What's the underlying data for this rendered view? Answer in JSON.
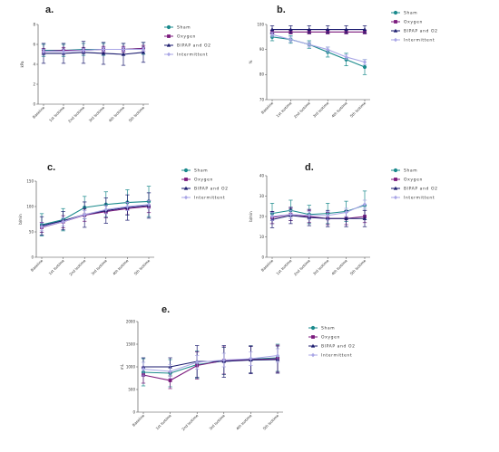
{
  "chart_data": [
    {
      "type": "line",
      "title": "a.",
      "ylabel": "kPa",
      "categories": [
        "Baseline",
        "1st Isotime",
        "2nd Isotime",
        "3rd Isotime",
        "4th Isotime",
        "5th Isotime"
      ],
      "ylim": [
        0,
        8
      ],
      "yticks": [
        0,
        2,
        4,
        6,
        8
      ],
      "colors": [
        "#1a8a8c",
        "#7b1a7d",
        "#1a1a6e",
        "#a9a6e6"
      ],
      "series": [
        {
          "name": "Sham",
          "values": [
            5.4,
            5.4,
            5.5,
            5.5,
            5.5,
            5.6
          ],
          "errors": [
            0.6,
            0.6,
            0.6,
            0.6,
            0.6,
            0.6
          ]
        },
        {
          "name": "Oxygen",
          "values": [
            5.3,
            5.4,
            5.4,
            5.5,
            5.5,
            5.6
          ],
          "errors": [
            0.3,
            0.3,
            0.3,
            0.3,
            0.3,
            0.3
          ]
        },
        {
          "name": "BIPAP and O2",
          "values": [
            5.1,
            5.1,
            5.2,
            5.1,
            5.0,
            5.2
          ],
          "errors": [
            1.0,
            1.0,
            1.1,
            1.1,
            1.1,
            1.0
          ]
        },
        {
          "name": "Intermittent",
          "values": [
            5.3,
            5.3,
            5.4,
            5.5,
            5.5,
            5.5
          ],
          "errors": [
            0.2,
            0.2,
            0.2,
            0.2,
            0.2,
            0.2
          ]
        }
      ]
    },
    {
      "type": "line",
      "title": "b.",
      "ylabel": "%",
      "categories": [
        "Baseline",
        "1st Isotime",
        "2nd Isotime",
        "3rd Isotime",
        "4th Isotime",
        "5th Isotime"
      ],
      "ylim": [
        70,
        100
      ],
      "yticks": [
        70,
        80,
        90,
        100
      ],
      "colors": [
        "#1a8a8c",
        "#7b1a7d",
        "#1a1a6e",
        "#a9a6e6"
      ],
      "series": [
        {
          "name": "Sham",
          "values": [
            95,
            94,
            92,
            89,
            86,
            83
          ],
          "errors": [
            1.5,
            1.5,
            1.5,
            2,
            2.5,
            3
          ]
        },
        {
          "name": "Oxygen",
          "values": [
            97,
            97,
            97,
            97,
            97,
            97
          ],
          "errors": [
            0.8,
            0.8,
            0.8,
            0.8,
            0.8,
            0.8
          ]
        },
        {
          "name": "BIPAP and O2",
          "values": [
            98,
            98,
            98,
            98,
            98,
            98
          ],
          "errors": [
            1.5,
            1.5,
            1.5,
            1.5,
            1.5,
            1.5
          ]
        },
        {
          "name": "Intermittent",
          "values": [
            96,
            94,
            92,
            90,
            87,
            85
          ],
          "errors": [
            1,
            1,
            1,
            1,
            1,
            1
          ]
        }
      ]
    },
    {
      "type": "line",
      "title": "c.",
      "ylabel": "b/min",
      "categories": [
        "Baseline",
        "1st Isotime",
        "2nd Isotime",
        "3rd Isotime",
        "4th Isotime",
        "5th Isotime"
      ],
      "ylim": [
        0,
        150
      ],
      "yticks": [
        0,
        50,
        100,
        150
      ],
      "colors": [
        "#1a8a8c",
        "#7b1a7d",
        "#1a1a6e",
        "#a9a6e6"
      ],
      "series": [
        {
          "name": "Sham",
          "values": [
            64,
            74,
            98,
            104,
            108,
            110
          ],
          "errors": [
            22,
            22,
            22,
            25,
            25,
            30
          ]
        },
        {
          "name": "Oxygen",
          "values": [
            59,
            70,
            83,
            90,
            96,
            100
          ],
          "errors": [
            10,
            12,
            12,
            12,
            12,
            12
          ]
        },
        {
          "name": "BIPAP and O2",
          "values": [
            62,
            72,
            84,
            92,
            98,
            102
          ],
          "errors": [
            18,
            18,
            25,
            25,
            25,
            25
          ]
        },
        {
          "name": "Intermittent",
          "values": [
            60,
            70,
            84,
            94,
            100,
            104
          ],
          "errors": [
            8,
            8,
            8,
            8,
            8,
            8
          ]
        }
      ]
    },
    {
      "type": "line",
      "title": "d.",
      "ylabel": "b/min",
      "categories": [
        "Baseline",
        "1st Isotime",
        "2nd Isotime",
        "3rd Isotime",
        "4th Isotime",
        "5th Isotime"
      ],
      "ylim": [
        0,
        40
      ],
      "yticks": [
        0,
        10,
        20,
        30,
        40
      ],
      "colors": [
        "#1a8a8c",
        "#7b1a7d",
        "#1a1a6e",
        "#a9a6e6"
      ],
      "series": [
        {
          "name": "Sham",
          "values": [
            21.5,
            23,
            21,
            21.5,
            22.5,
            25.5
          ],
          "errors": [
            5,
            5,
            4.5,
            5,
            5,
            7
          ]
        },
        {
          "name": "Oxygen",
          "values": [
            19.5,
            21,
            20,
            19,
            19,
            20
          ],
          "errors": [
            3,
            3,
            3,
            3,
            3,
            3
          ]
        },
        {
          "name": "BIPAP and O2",
          "values": [
            18.5,
            20.5,
            19.5,
            19,
            19,
            19
          ],
          "errors": [
            4,
            4,
            4,
            4,
            4,
            4
          ]
        },
        {
          "name": "Intermittent",
          "values": [
            20,
            21,
            20.5,
            20.5,
            22,
            26
          ],
          "errors": [
            2,
            2,
            2,
            2,
            2,
            2
          ]
        }
      ]
    },
    {
      "type": "line",
      "title": "e.",
      "ylabel": "mL",
      "categories": [
        "Baseline",
        "1st Isotime",
        "2nd Isotime",
        "3rd Isotime",
        "4th Isotime",
        "5th Isotime"
      ],
      "ylim": [
        0,
        2000
      ],
      "yticks": [
        0,
        500,
        1000,
        1500,
        2000
      ],
      "colors": [
        "#1a8a8c",
        "#7b1a7d",
        "#1a1a6e",
        "#a9a6e6"
      ],
      "series": [
        {
          "name": "Sham",
          "values": [
            880,
            860,
            1050,
            1130,
            1170,
            1200
          ],
          "errors": [
            300,
            300,
            300,
            300,
            300,
            300
          ]
        },
        {
          "name": "Oxygen",
          "values": [
            820,
            700,
            1030,
            1140,
            1160,
            1180
          ],
          "errors": [
            180,
            180,
            300,
            300,
            300,
            300
          ]
        },
        {
          "name": "BIPAP and O2",
          "values": [
            1000,
            1000,
            1120,
            1120,
            1150,
            1160
          ],
          "errors": [
            200,
            200,
            350,
            350,
            300,
            300
          ]
        },
        {
          "name": "Intermittent",
          "values": [
            950,
            900,
            1100,
            1150,
            1180,
            1250
          ],
          "errors": [
            150,
            150,
            150,
            150,
            150,
            150
          ]
        }
      ]
    }
  ]
}
